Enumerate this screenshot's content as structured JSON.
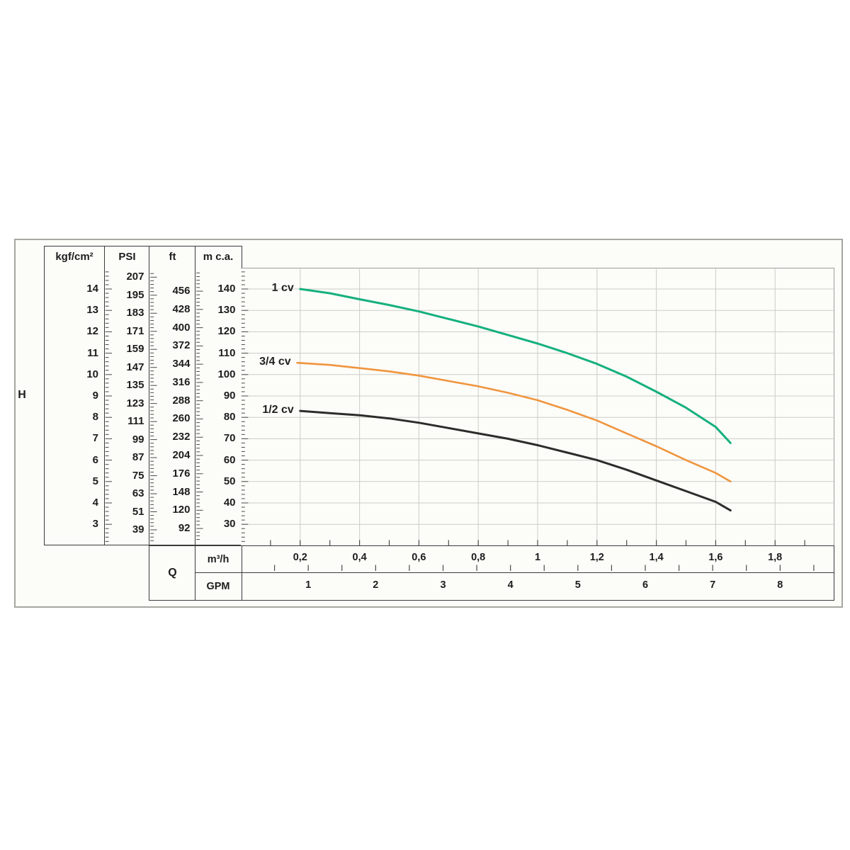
{
  "figure": {
    "h_label": "H",
    "q_label": "Q"
  },
  "table": {
    "headers": [
      "kgf/cm²",
      "PSI",
      "ft",
      "m c.a."
    ],
    "kgf_values": [
      14,
      13,
      12,
      11,
      10,
      9,
      8,
      7,
      6,
      5,
      4,
      3
    ],
    "psi_values": [
      207,
      195,
      183,
      171,
      159,
      147,
      135,
      123,
      111,
      99,
      87,
      75,
      63,
      51,
      39
    ],
    "ft_values": [
      456,
      428,
      400,
      372,
      344,
      316,
      288,
      260,
      232,
      204,
      176,
      148,
      120,
      92
    ],
    "mca_values": [
      140,
      130,
      120,
      110,
      100,
      90,
      80,
      70,
      60,
      50,
      40,
      30
    ]
  },
  "axis": {
    "m3h_label": "m³/h",
    "gpm_label": "GPM",
    "m3h_tick_labels": [
      "0,2",
      "0,4",
      "0,6",
      "0,8",
      "1",
      "1,2",
      "1,4",
      "1,6",
      "1,8"
    ],
    "gpm_tick_labels": [
      "1",
      "2",
      "3",
      "4",
      "5",
      "6",
      "7",
      "8"
    ]
  },
  "chart_data": {
    "type": "line",
    "title": "",
    "xlabel": "Q",
    "x_units": [
      "m³/h",
      "GPM"
    ],
    "ylabel": "H",
    "y_units": [
      "kgf/cm²",
      "PSI",
      "ft",
      "m c.a."
    ],
    "xlim": [
      0,
      2.0
    ],
    "ylim": [
      20,
      150
    ],
    "x_gridline_step": 0.2,
    "y_gridline_step": 10,
    "grid": true,
    "legend_position": "inline-left-of-curves",
    "series": [
      {
        "name": "1 cv",
        "color": "#15b07e",
        "points": [
          [
            0.2,
            140
          ],
          [
            0.3,
            138
          ],
          [
            0.4,
            135.2
          ],
          [
            0.5,
            132.5
          ],
          [
            0.6,
            129.5
          ],
          [
            0.7,
            126
          ],
          [
            0.8,
            122.5
          ],
          [
            0.9,
            118.5
          ],
          [
            1.0,
            114.5
          ],
          [
            1.1,
            110
          ],
          [
            1.2,
            105
          ],
          [
            1.3,
            99
          ],
          [
            1.4,
            92
          ],
          [
            1.5,
            84.5
          ],
          [
            1.6,
            75.5
          ],
          [
            1.65,
            68
          ]
        ]
      },
      {
        "name": "3/4 cv",
        "color": "#f0953e",
        "points": [
          [
            0.19,
            105.5
          ],
          [
            0.3,
            104.5
          ],
          [
            0.4,
            103
          ],
          [
            0.5,
            101.5
          ],
          [
            0.6,
            99.5
          ],
          [
            0.7,
            97
          ],
          [
            0.8,
            94.5
          ],
          [
            0.9,
            91.5
          ],
          [
            1.0,
            88
          ],
          [
            1.1,
            83.5
          ],
          [
            1.2,
            78.5
          ],
          [
            1.3,
            72.5
          ],
          [
            1.4,
            66.5
          ],
          [
            1.5,
            60
          ],
          [
            1.6,
            54
          ],
          [
            1.65,
            50
          ]
        ]
      },
      {
        "name": "1/2 cv",
        "color": "#2c2c2a",
        "points": [
          [
            0.2,
            83
          ],
          [
            0.3,
            82
          ],
          [
            0.4,
            81
          ],
          [
            0.5,
            79.5
          ],
          [
            0.6,
            77.5
          ],
          [
            0.7,
            75
          ],
          [
            0.8,
            72.5
          ],
          [
            0.9,
            70
          ],
          [
            1.0,
            67
          ],
          [
            1.1,
            63.5
          ],
          [
            1.2,
            60
          ],
          [
            1.3,
            55.5
          ],
          [
            1.4,
            50.5
          ],
          [
            1.5,
            45.5
          ],
          [
            1.6,
            40.5
          ],
          [
            1.65,
            36.5
          ]
        ]
      }
    ]
  },
  "colors": {
    "curve_1cv": "#15b07e",
    "curve_34cv": "#f0953e",
    "curve_12cv": "#2c2c2a",
    "gridline": "#cccbc7",
    "dark_border": "#3b3b3b",
    "gray_frame": "#9c9c98",
    "outer_border": "#a6a6a2",
    "background": "#fcfcf8",
    "text": "#1d1d1d"
  }
}
